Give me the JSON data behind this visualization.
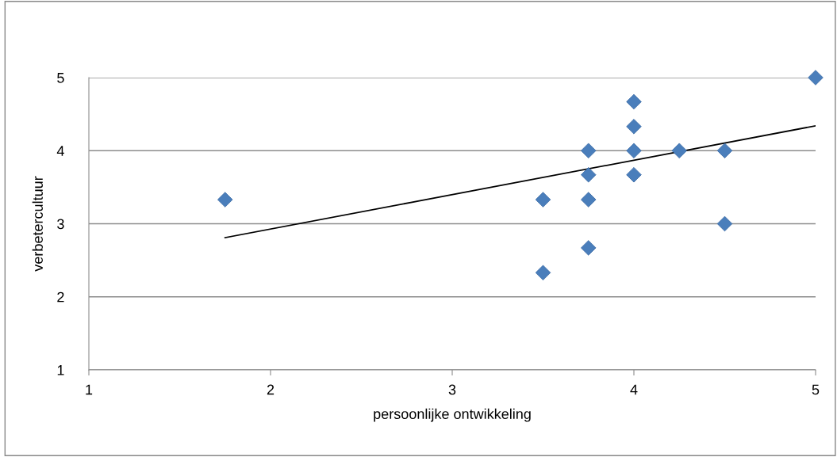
{
  "chart_data": {
    "type": "scatter",
    "xlabel": "persoonlijke ontwikkeling",
    "ylabel": "verbetercultuur",
    "xlim": [
      1,
      5
    ],
    "ylim": [
      1,
      5
    ],
    "xticks": [
      1,
      2,
      3,
      4,
      5
    ],
    "yticks": [
      1,
      2,
      3,
      4,
      5
    ],
    "grid": "y",
    "marker": "diamond",
    "series": [
      {
        "color": "#4a7ebb",
        "x": [
          1.75,
          3.5,
          3.5,
          3.75,
          3.75,
          3.75,
          3.75,
          4,
          4,
          4,
          4,
          4.25,
          4.5,
          4.5,
          5
        ],
        "values": [
          3.33,
          3.33,
          2.33,
          4,
          3.67,
          3.33,
          2.67,
          4.67,
          4.33,
          4,
          3.67,
          4,
          4,
          3,
          5
        ]
      },
      {
        "type": "line",
        "marker": "none",
        "color": "#000000",
        "x": [
          1.75,
          5
        ],
        "values": [
          2.81,
          4.34
        ]
      }
    ]
  }
}
